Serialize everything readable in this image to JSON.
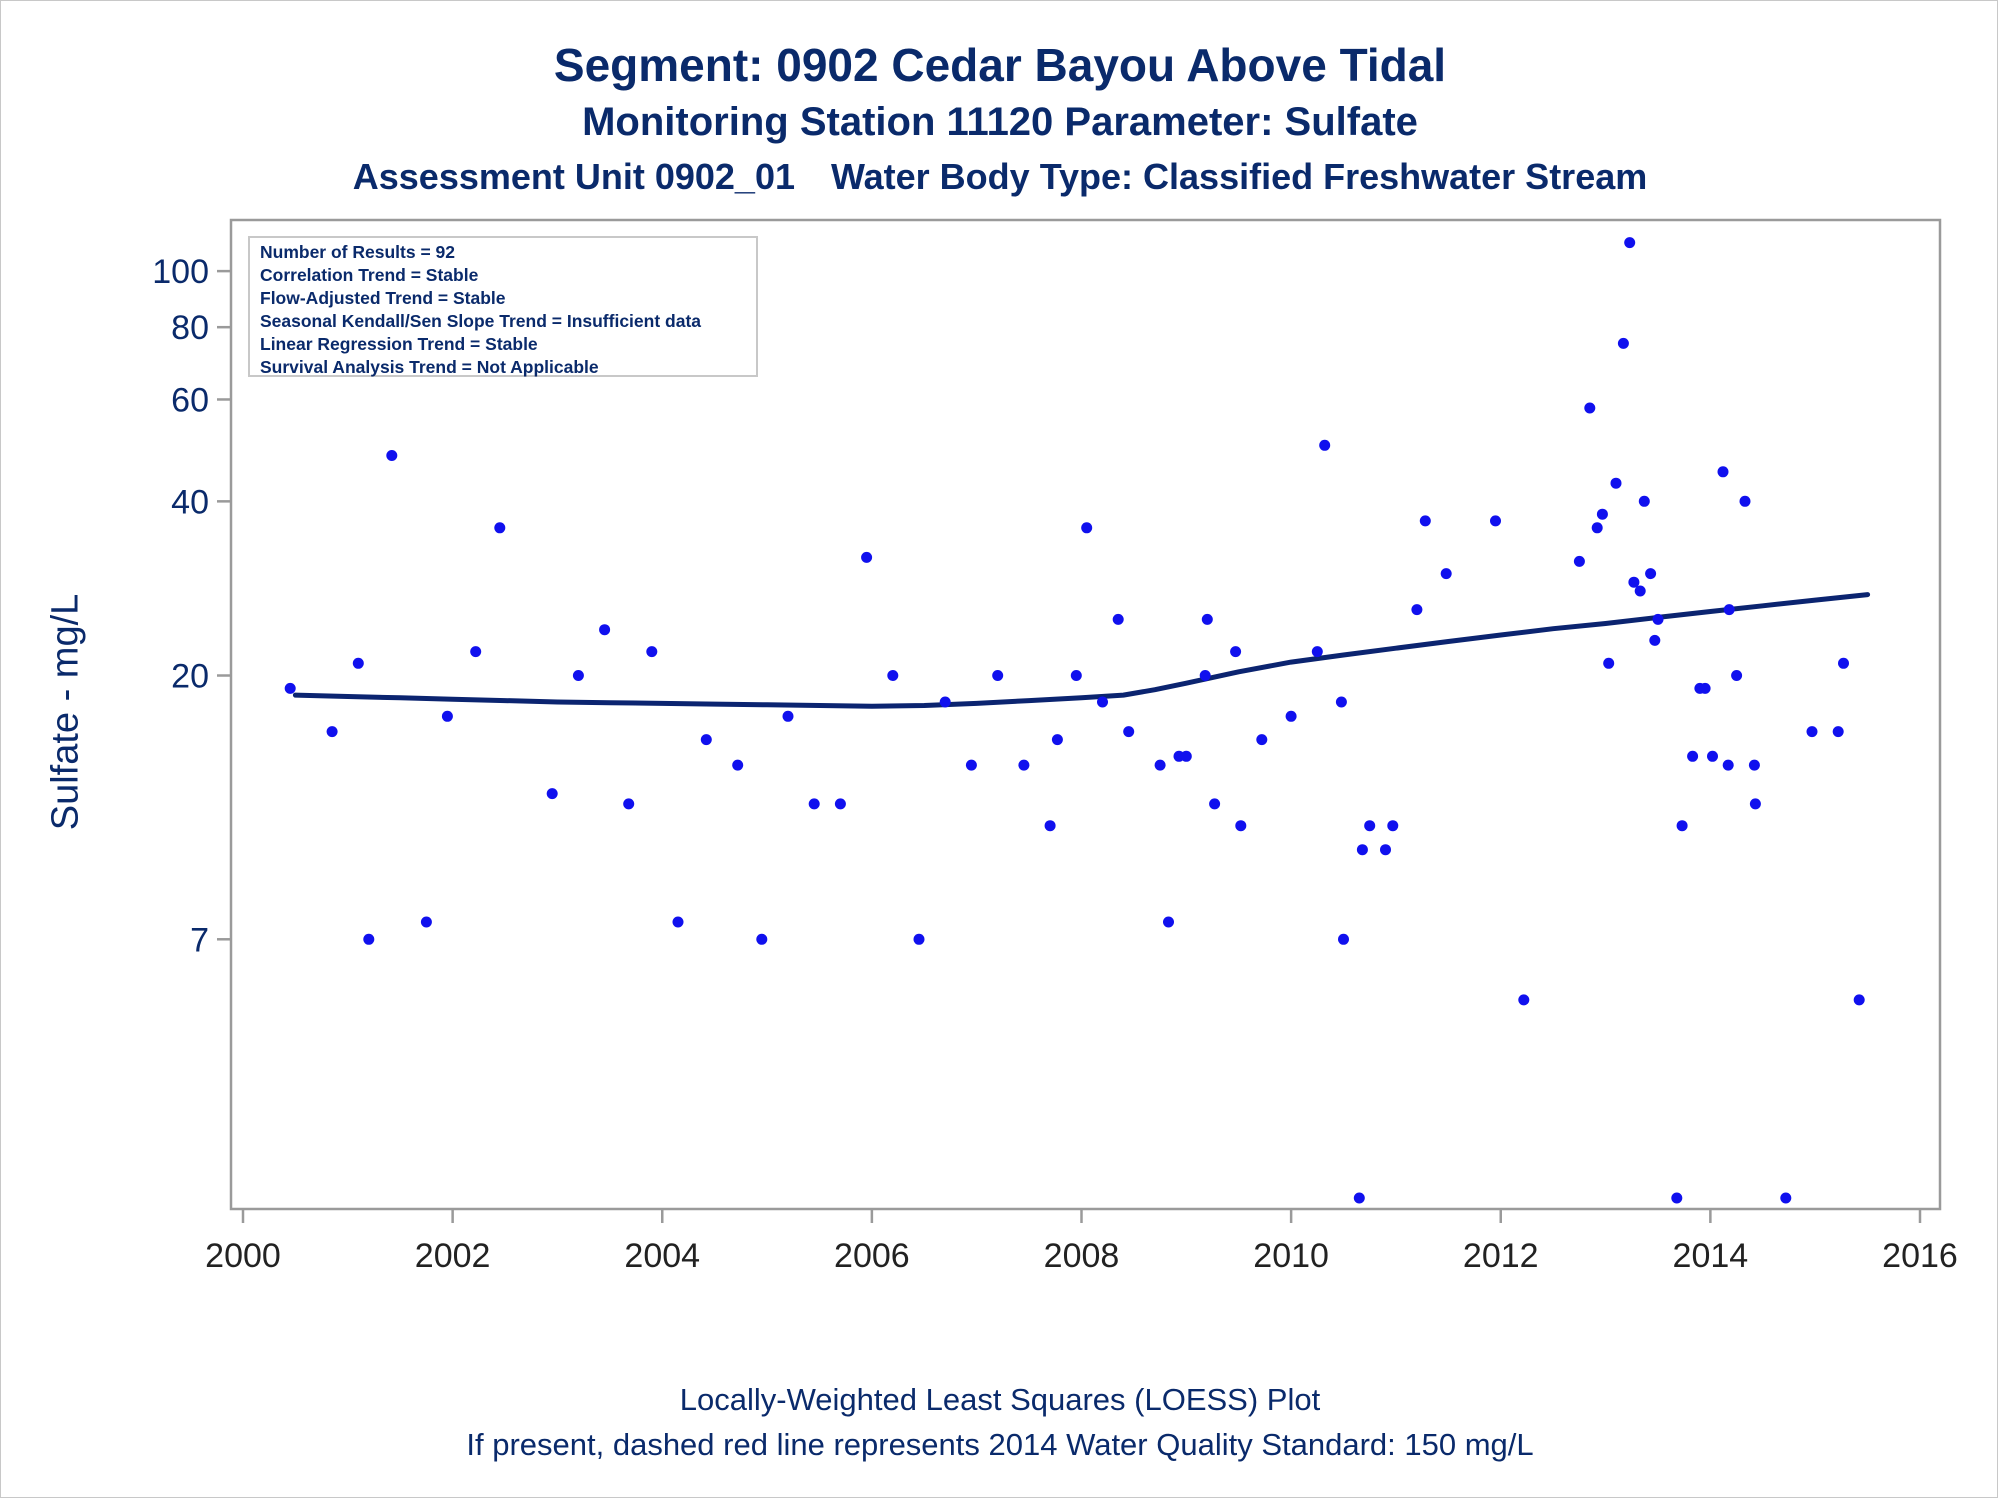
{
  "titles": {
    "line1": "Segment: 0902  Cedar Bayou Above Tidal",
    "line2": "Monitoring Station 11120 Parameter: Sulfate",
    "line3a": "Assessment Unit 0902_01",
    "line3b": "Water Body Type: Classified Freshwater Stream"
  },
  "stats": [
    "Number of Results = 92",
    "Correlation Trend = Stable",
    "Flow-Adjusted Trend = Stable",
    "Seasonal Kendall/Sen Slope Trend = Insufficient data",
    "Linear Regression Trend = Stable",
    "Survival Analysis Trend = Not Applicable"
  ],
  "footer": {
    "line1": "Locally-Weighted Least Squares (LOESS) Plot",
    "line2": "If present, dashed red line represents 2014 Water Quality Standard: 150   mg/L"
  },
  "colors": {
    "text": "#0a2a6b",
    "points": "#1010ee",
    "loess": "#0b2470",
    "axis": "#9a9a9a"
  },
  "chart_data": {
    "type": "scatter",
    "ylabel": "Sulfate - mg/L",
    "xlabel": "",
    "y_scale": "log",
    "xlim": [
      2000,
      2016
    ],
    "ylim": [
      2.5,
      115
    ],
    "x_ticks": [
      2000,
      2002,
      2004,
      2006,
      2008,
      2010,
      2012,
      2014,
      2016
    ],
    "y_ticks": [
      7,
      20,
      40,
      60,
      80,
      100
    ],
    "grid": false,
    "series": [
      {
        "name": "",
        "style": "points",
        "points": [
          [
            2000.45,
            19.0
          ],
          [
            2000.85,
            16.0
          ],
          [
            2001.1,
            21.0
          ],
          [
            2001.2,
            7.0
          ],
          [
            2001.42,
            48.0
          ],
          [
            2001.75,
            7.5
          ],
          [
            2001.95,
            17.0
          ],
          [
            2002.22,
            22.0
          ],
          [
            2002.45,
            36.0
          ],
          [
            2002.95,
            12.5
          ],
          [
            2003.2,
            20.0
          ],
          [
            2003.45,
            24.0
          ],
          [
            2003.68,
            12.0
          ],
          [
            2003.9,
            22.0
          ],
          [
            2004.15,
            7.5
          ],
          [
            2004.42,
            15.5
          ],
          [
            2004.72,
            14.0
          ],
          [
            2004.95,
            7.0
          ],
          [
            2005.2,
            17.0
          ],
          [
            2005.45,
            12.0
          ],
          [
            2005.7,
            12.0
          ],
          [
            2005.95,
            32.0
          ],
          [
            2006.2,
            20.0
          ],
          [
            2006.45,
            7.0
          ],
          [
            2006.7,
            18.0
          ],
          [
            2006.95,
            14.0
          ],
          [
            2007.2,
            20.0
          ],
          [
            2007.45,
            14.0
          ],
          [
            2007.7,
            11.0
          ],
          [
            2007.77,
            15.5
          ],
          [
            2007.95,
            20.0
          ],
          [
            2008.05,
            36.0
          ],
          [
            2008.2,
            18.0
          ],
          [
            2008.35,
            25.0
          ],
          [
            2008.45,
            16.0
          ],
          [
            2008.75,
            14.0
          ],
          [
            2008.83,
            7.5
          ],
          [
            2008.93,
            14.5
          ],
          [
            2009.0,
            14.5
          ],
          [
            2009.18,
            20.0
          ],
          [
            2009.2,
            25.0
          ],
          [
            2009.27,
            12.0
          ],
          [
            2009.47,
            22.0
          ],
          [
            2009.52,
            11.0
          ],
          [
            2009.72,
            15.5
          ],
          [
            2010.0,
            17.0
          ],
          [
            2010.25,
            22.0
          ],
          [
            2010.32,
            50.0
          ],
          [
            2010.48,
            18.0
          ],
          [
            2010.5,
            7.0
          ],
          [
            2010.65,
            2.5
          ],
          [
            2010.68,
            10.0
          ],
          [
            2010.75,
            11.0
          ],
          [
            2010.9,
            10.0
          ],
          [
            2010.97,
            11.0
          ],
          [
            2011.2,
            26.0
          ],
          [
            2011.28,
            37.0
          ],
          [
            2011.48,
            30.0
          ],
          [
            2011.95,
            37.0
          ],
          [
            2012.22,
            5.5
          ],
          [
            2012.75,
            31.5
          ],
          [
            2012.85,
            58.0
          ],
          [
            2012.92,
            36.0
          ],
          [
            2012.97,
            38.0
          ],
          [
            2013.03,
            21.0
          ],
          [
            2013.1,
            43.0
          ],
          [
            2013.17,
            75.0
          ],
          [
            2013.23,
            112.0
          ],
          [
            2013.27,
            29.0
          ],
          [
            2013.33,
            28.0
          ],
          [
            2013.37,
            40.0
          ],
          [
            2013.43,
            30.0
          ],
          [
            2013.47,
            23.0
          ],
          [
            2013.5,
            25.0
          ],
          [
            2013.68,
            2.5
          ],
          [
            2013.73,
            11.0
          ],
          [
            2013.83,
            14.5
          ],
          [
            2013.9,
            19.0
          ],
          [
            2013.95,
            19.0
          ],
          [
            2014.02,
            14.5
          ],
          [
            2014.12,
            45.0
          ],
          [
            2014.17,
            14.0
          ],
          [
            2014.18,
            26.0
          ],
          [
            2014.25,
            20.0
          ],
          [
            2014.33,
            40.0
          ],
          [
            2014.42,
            14.0
          ],
          [
            2014.43,
            12.0
          ],
          [
            2014.72,
            2.5
          ],
          [
            2014.97,
            16.0
          ],
          [
            2015.22,
            16.0
          ],
          [
            2015.27,
            21.0
          ],
          [
            2015.42,
            5.5
          ]
        ]
      },
      {
        "name": "",
        "style": "line",
        "points": [
          [
            2000.5,
            18.5
          ],
          [
            2001.0,
            18.4
          ],
          [
            2001.5,
            18.3
          ],
          [
            2002.0,
            18.2
          ],
          [
            2002.5,
            18.1
          ],
          [
            2003.0,
            18.0
          ],
          [
            2003.5,
            17.95
          ],
          [
            2004.0,
            17.9
          ],
          [
            2004.5,
            17.85
          ],
          [
            2005.0,
            17.8
          ],
          [
            2005.5,
            17.75
          ],
          [
            2006.0,
            17.7
          ],
          [
            2006.5,
            17.75
          ],
          [
            2007.0,
            17.9
          ],
          [
            2007.5,
            18.1
          ],
          [
            2008.0,
            18.3
          ],
          [
            2008.4,
            18.5
          ],
          [
            2008.7,
            18.9
          ],
          [
            2009.0,
            19.4
          ],
          [
            2009.5,
            20.3
          ],
          [
            2010.0,
            21.1
          ],
          [
            2010.5,
            21.7
          ],
          [
            2011.0,
            22.3
          ],
          [
            2011.5,
            22.9
          ],
          [
            2012.0,
            23.5
          ],
          [
            2012.5,
            24.1
          ],
          [
            2013.0,
            24.6
          ],
          [
            2013.5,
            25.2
          ],
          [
            2014.0,
            25.8
          ],
          [
            2014.5,
            26.4
          ],
          [
            2015.0,
            27.0
          ],
          [
            2015.5,
            27.6
          ]
        ]
      }
    ]
  }
}
